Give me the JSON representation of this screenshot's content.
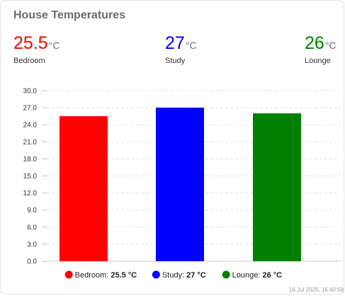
{
  "card": {
    "title": "House Temperatures",
    "timestamp": "16 Jul 2025, 16:40:59"
  },
  "stats": [
    {
      "label": "Bedroom",
      "value": "25.5",
      "unit": "°C",
      "color": "#ff0000"
    },
    {
      "label": "Study",
      "value": "27",
      "unit": "°C",
      "color": "#0000ff"
    },
    {
      "label": "Lounge",
      "value": "26",
      "unit": "°C",
      "color": "#008000"
    }
  ],
  "chart_data": {
    "type": "bar",
    "categories": [
      "Bedroom",
      "Study",
      "Lounge"
    ],
    "values": [
      25.5,
      27,
      26
    ],
    "colors": [
      "#ff0000",
      "#0000ff",
      "#008000"
    ],
    "ylim": [
      0,
      30
    ],
    "yticks": [
      "0.0",
      "3.0",
      "6.0",
      "9.0",
      "12.0",
      "15.0",
      "18.0",
      "21.0",
      "24.0",
      "27.0",
      "30.0"
    ],
    "grid": true,
    "legend_position": "bottom",
    "legend": [
      {
        "name": "Bedroom",
        "value": "25.5 °C",
        "color": "#ff0000"
      },
      {
        "name": "Study",
        "value": "27 °C",
        "color": "#0000ff"
      },
      {
        "name": "Lounge",
        "value": "26 °C",
        "color": "#008000"
      }
    ]
  }
}
